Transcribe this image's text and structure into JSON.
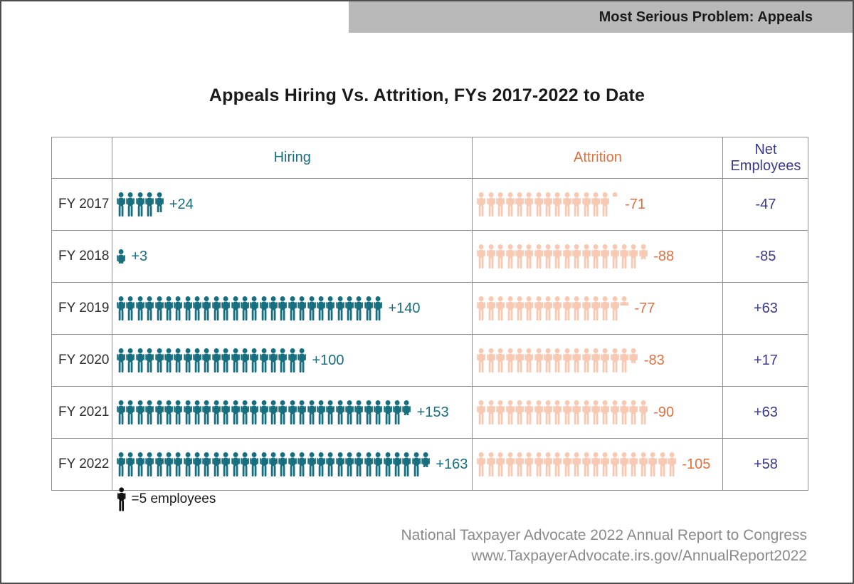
{
  "banner": {
    "label": "Most Serious Problem: Appeals"
  },
  "title": "Appeals Hiring Vs. Attrition, FYs 2017-2022 to Date",
  "table": {
    "columns": {
      "year": "",
      "hiring": "Hiring",
      "attrition": "Attrition",
      "net": "Net Employees"
    }
  },
  "chart_data": {
    "type": "table",
    "subtype": "pictograph",
    "title": "Appeals Hiring Vs. Attrition, FYs 2017-2022 to Date",
    "icon_unit": 5,
    "categories": [
      "FY 2017",
      "FY 2018",
      "FY 2019",
      "FY 2020",
      "FY 2021",
      "FY 2022"
    ],
    "series": [
      {
        "name": "Hiring",
        "values": [
          24,
          3,
          140,
          100,
          153,
          163
        ],
        "labels": [
          "+24",
          "+3",
          "+140",
          "+100",
          "+153",
          "+163"
        ]
      },
      {
        "name": "Attrition",
        "values": [
          71,
          88,
          77,
          83,
          90,
          105
        ],
        "labels": [
          "-71",
          "-88",
          "-77",
          "-83",
          "-90",
          "-105"
        ]
      },
      {
        "name": "Net Employees",
        "values": [
          -47,
          -85,
          63,
          17,
          63,
          58
        ],
        "labels": [
          "-47",
          "-85",
          "+63",
          "+17",
          "+63",
          "+58"
        ]
      }
    ],
    "legend_note": "=5 employees"
  },
  "legend": {
    "label": "=5 employees"
  },
  "footer": {
    "line1": "National Taxpayer Advocate 2022 Annual Report to Congress",
    "line2": "www.TaxpayerAdvocate.irs.gov/AnnualReport2022"
  },
  "colors": {
    "hiring": "#176e7e",
    "attrition_icon": "#f7c9b3",
    "attrition_text": "#e0703f",
    "net_text": "#3a3a8c",
    "banner_bg": "#b9b9b9",
    "legend_icon": "#111111"
  }
}
